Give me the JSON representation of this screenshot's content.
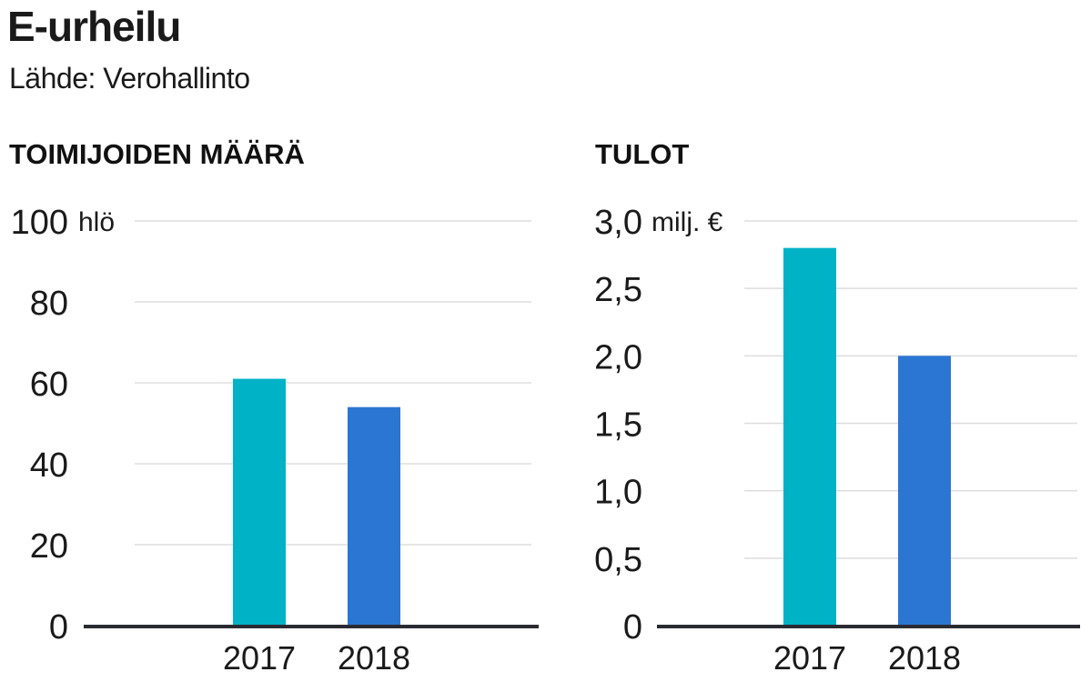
{
  "header": {
    "title": "E-urheilu",
    "source": "Lähde: Verohallinto"
  },
  "colors": {
    "bar_2017": "#00b2c6",
    "bar_2018": "#2b76d2",
    "grid": "#dddddd",
    "axis": "#2a2a33"
  },
  "chart_data": [
    {
      "type": "bar",
      "title": "TOIMIJOIDEN MÄÄRÄ",
      "unit": "hlö",
      "categories": [
        "2017",
        "2018"
      ],
      "values": [
        61,
        54
      ],
      "ylim": [
        0,
        100
      ],
      "yticks": [
        0,
        20,
        40,
        60,
        80,
        100
      ],
      "ytick_labels": [
        "0",
        "20",
        "40",
        "60",
        "80",
        "100"
      ],
      "grid": true
    },
    {
      "type": "bar",
      "title": "TULOT",
      "unit": "milj. €",
      "categories": [
        "2017",
        "2018"
      ],
      "values": [
        2.8,
        2.0
      ],
      "ylim": [
        0,
        3
      ],
      "yticks": [
        0,
        0.5,
        1,
        1.5,
        2,
        2.5,
        3
      ],
      "ytick_labels": [
        "0",
        "0,5",
        "1,0",
        "1,5",
        "2,0",
        "2,5",
        "3,0"
      ],
      "grid": true
    }
  ]
}
